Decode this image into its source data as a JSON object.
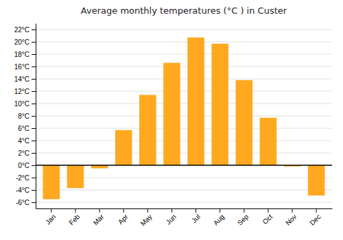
{
  "chart_data": {
    "type": "bar",
    "title": "Average monthly temperatures (°C ) in Custer",
    "categories": [
      "Jan",
      "Feb",
      "Mar",
      "Apr",
      "May",
      "Jun",
      "Jul",
      "Aug",
      "Sep",
      "Oct",
      "Nov",
      "Dec"
    ],
    "values": [
      -5.5,
      -3.7,
      -0.5,
      5.7,
      11.4,
      16.6,
      20.7,
      19.7,
      13.8,
      7.7,
      -0.2,
      -4.9
    ],
    "color": "#FFA820",
    "ylim": [
      -7,
      23
    ],
    "yticks": [
      {
        "value": -6,
        "label": "-6°C"
      },
      {
        "value": -4,
        "label": "-4°C"
      },
      {
        "value": -2,
        "label": "-2°C"
      },
      {
        "value": 0,
        "label": "0°C"
      },
      {
        "value": 2,
        "label": "2°C"
      },
      {
        "value": 4,
        "label": "4°C"
      },
      {
        "value": 6,
        "label": "6°C"
      },
      {
        "value": 8,
        "label": "8°C"
      },
      {
        "value": 10,
        "label": "10°C"
      },
      {
        "value": 12,
        "label": "12°C"
      },
      {
        "value": 14,
        "label": "14°C"
      },
      {
        "value": 16,
        "label": "16°C"
      },
      {
        "value": 18,
        "label": "18°C"
      },
      {
        "value": 20,
        "label": "20°C"
      },
      {
        "value": 22,
        "label": "22°C"
      }
    ],
    "grid": true
  }
}
